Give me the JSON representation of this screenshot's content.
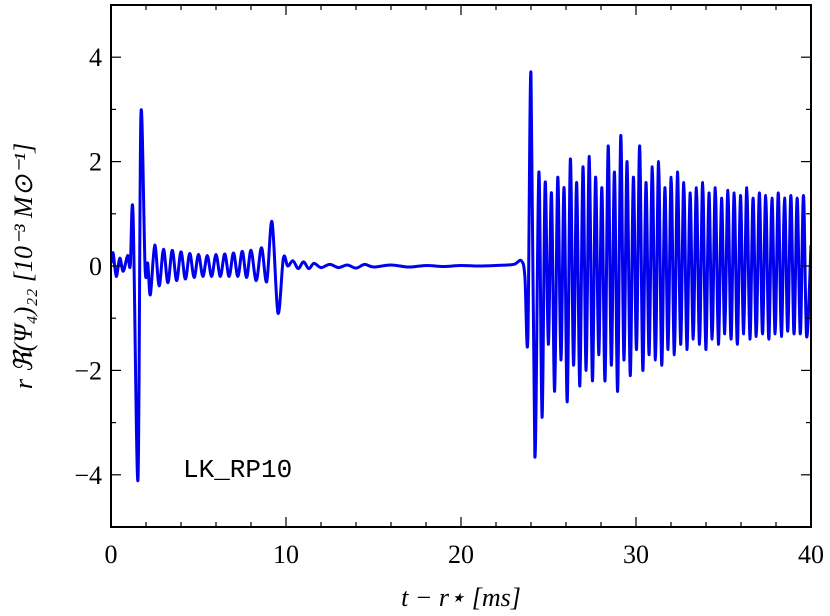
{
  "chart_data": {
    "type": "line",
    "xlabel": "t − r⋆ [ms]",
    "ylabel": "r ℜ(Ψ₄)₂₂ [10⁻³ M⊙⁻¹]",
    "annotation": "LK_RP10",
    "color": "#0000ee",
    "xlim": [
      0,
      40
    ],
    "ylim": [
      -5,
      5
    ],
    "xticks": [
      0,
      10,
      20,
      30,
      40
    ],
    "yticks": [
      {
        "value": -4,
        "label": "−4"
      },
      {
        "value": -2,
        "label": "−2"
      },
      0,
      2,
      4
    ],
    "xminorticks": [
      2,
      4,
      6,
      8,
      12,
      14,
      16,
      18,
      22,
      24,
      26,
      28,
      32,
      34,
      36,
      38
    ],
    "yminorticks": [
      -5,
      -3,
      -1,
      1,
      3,
      5
    ],
    "x": [
      0,
      0.12,
      0.3,
      0.5,
      0.7,
      0.95,
      1.1,
      1.26,
      1.54,
      1.71,
      1.95,
      2.1,
      2.25,
      2.5,
      2.75,
      3.0,
      3.25,
      3.5,
      3.75,
      4.0,
      4.25,
      4.5,
      4.75,
      5.0,
      5.25,
      5.5,
      5.75,
      6.0,
      6.25,
      6.5,
      6.75,
      7.0,
      7.25,
      7.5,
      7.75,
      8.0,
      8.3,
      8.6,
      8.9,
      9.2,
      9.54,
      9.85,
      10.1,
      10.4,
      10.7,
      11.0,
      11.3,
      11.6,
      12,
      12.5,
      13,
      13.5,
      14,
      14.5,
      15,
      16,
      17,
      18,
      19,
      20,
      21,
      22,
      23,
      23.45,
      23.65,
      23.82,
      24.0,
      24.22,
      24.45,
      24.63,
      24.81,
      24.99,
      25.17,
      25.35,
      25.53,
      25.71,
      25.89,
      26.07,
      26.25,
      26.43,
      26.61,
      26.79,
      26.97,
      27.15,
      27.33,
      27.51,
      27.69,
      27.87,
      28.05,
      28.23,
      28.41,
      28.59,
      28.77,
      28.95,
      29.13,
      29.31,
      29.49,
      29.67,
      29.85,
      30.03,
      30.21,
      30.39,
      30.57,
      30.75,
      30.93,
      31.11,
      31.29,
      31.47,
      31.65,
      31.83,
      32.01,
      32.19,
      32.37,
      32.55,
      32.73,
      32.91,
      33.09,
      33.27,
      33.45,
      33.63,
      33.81,
      33.99,
      34.17,
      34.35,
      34.53,
      34.71,
      34.89,
      35.07,
      35.25,
      35.43,
      35.61,
      35.79,
      35.97,
      36.15,
      36.33,
      36.51,
      36.69,
      36.87,
      37.05,
      37.23,
      37.41,
      37.59,
      37.77,
      37.95,
      38.13,
      38.31,
      38.49,
      38.67,
      38.85,
      39.03,
      39.21,
      39.39,
      39.57,
      39.75,
      40.0
    ],
    "values": [
      0.05,
      0.25,
      -0.2,
      0.15,
      -0.1,
      0.2,
      0.0,
      1.0,
      -4.1,
      2.9,
      -0.05,
      0.05,
      -0.55,
      0.4,
      -0.38,
      0.32,
      -0.32,
      0.3,
      -0.28,
      0.27,
      -0.25,
      0.24,
      -0.22,
      0.22,
      -0.2,
      0.2,
      -0.2,
      0.22,
      -0.2,
      0.23,
      -0.2,
      0.25,
      -0.2,
      0.28,
      -0.22,
      0.3,
      -0.28,
      0.35,
      -0.3,
      0.85,
      -0.9,
      0.15,
      0.0,
      0.1,
      -0.05,
      0.08,
      -0.05,
      0.05,
      -0.03,
      0.03,
      -0.03,
      0.02,
      -0.04,
      0.03,
      -0.02,
      0.02,
      -0.02,
      0.01,
      -0.01,
      0.01,
      0,
      0.01,
      0.03,
      0.1,
      -0.2,
      -1.4,
      3.7,
      -3.65,
      1.8,
      -2.9,
      1.6,
      -1.5,
      1.4,
      -2.4,
      1.7,
      -1.8,
      1.5,
      -2.6,
      2.05,
      -1.9,
      1.6,
      -2.3,
      1.9,
      -2.0,
      2.1,
      -2.2,
      1.7,
      -1.7,
      1.5,
      -2.2,
      2.3,
      -1.9,
      1.8,
      -2.4,
      2.5,
      -1.8,
      2.0,
      -2.1,
      1.7,
      -1.6,
      2.3,
      -2.0,
      1.6,
      -1.7,
      1.9,
      -1.8,
      2.0,
      -1.9,
      1.5,
      -1.6,
      1.7,
      -1.7,
      1.8,
      -1.5,
      1.6,
      -1.6,
      1.4,
      -1.4,
      1.5,
      -1.5,
      1.6,
      -1.6,
      1.4,
      -1.4,
      1.5,
      -1.5,
      1.3,
      -1.3,
      1.45,
      -1.4,
      1.4,
      -1.5,
      1.35,
      -1.3,
      1.5,
      -1.4,
      1.3,
      -1.35,
      1.4,
      -1.3,
      1.35,
      -1.4,
      1.3,
      -1.3,
      1.4,
      -1.35,
      1.3,
      -1.25,
      1.35,
      -1.3,
      1.3,
      -1.3,
      1.35,
      -1.35,
      0.4
    ]
  }
}
